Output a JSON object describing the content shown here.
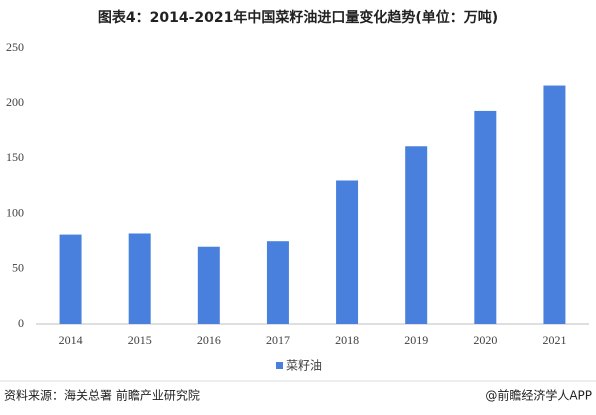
{
  "chart_data": {
    "type": "bar",
    "title": "图表4：2014-2021年中国菜籽油进口量变化趋势(单位：万吨)",
    "categories": [
      "2014",
      "2015",
      "2016",
      "2017",
      "2018",
      "2019",
      "2020",
      "2021"
    ],
    "series": [
      {
        "name": "菜籽油",
        "color": "#4a80dd",
        "values": [
          81,
          82,
          70,
          75,
          130,
          161,
          193,
          216
        ]
      }
    ],
    "ylim": [
      0,
      250
    ],
    "yticks": [
      0,
      50,
      100,
      150,
      200,
      250
    ],
    "grid": false,
    "legend": "bottom"
  },
  "footer": {
    "source": "资料来源：海关总署 前瞻产业研究院",
    "brand": "@前瞻经济学人APP"
  }
}
